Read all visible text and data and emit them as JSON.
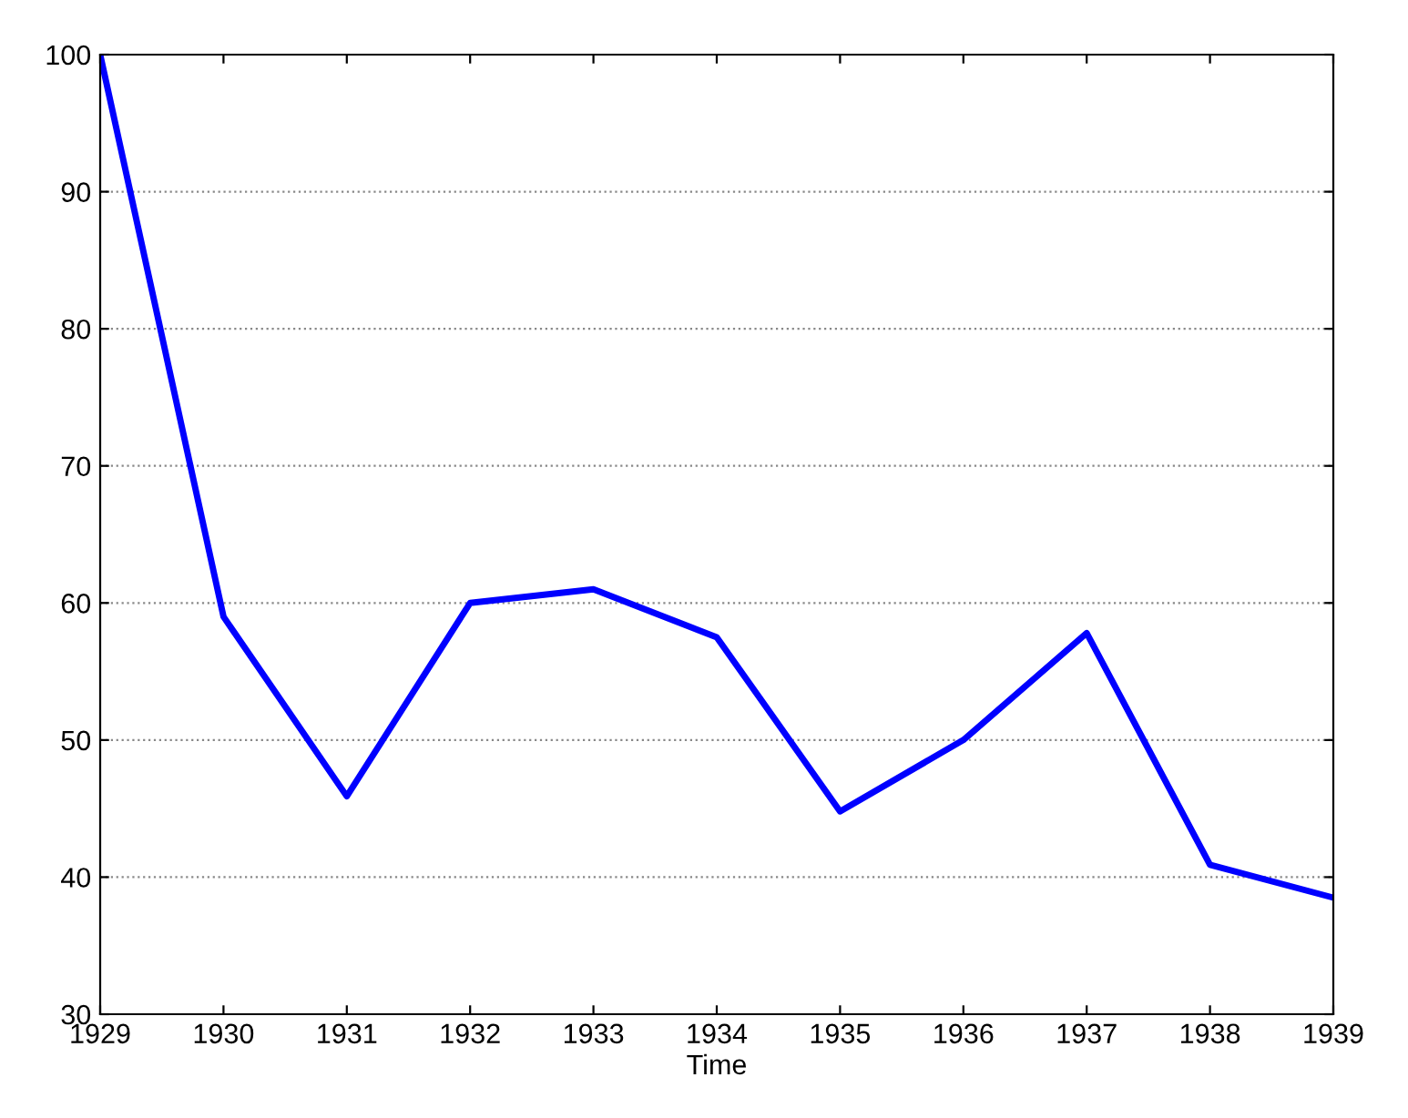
{
  "chart_data": {
    "type": "line",
    "xlabel": "Time",
    "x": [
      1929,
      1930,
      1931,
      1932,
      1933,
      1934,
      1935,
      1936,
      1937,
      1938,
      1939
    ],
    "series": [
      {
        "color": "#0000ff",
        "values": [
          100,
          59,
          45.9,
          60,
          61,
          57.5,
          44.8,
          50,
          57.8,
          40.9,
          38.5
        ]
      }
    ],
    "xlim": [
      1929,
      1939
    ],
    "xticks": [
      1929,
      1930,
      1931,
      1932,
      1933,
      1934,
      1935,
      1936,
      1937,
      1938,
      1939
    ],
    "ylim": [
      30,
      100
    ],
    "yticks": [
      30,
      40,
      50,
      60,
      70,
      80,
      90,
      100
    ],
    "grid": "y",
    "line_style": "solid",
    "marker": "none"
  }
}
